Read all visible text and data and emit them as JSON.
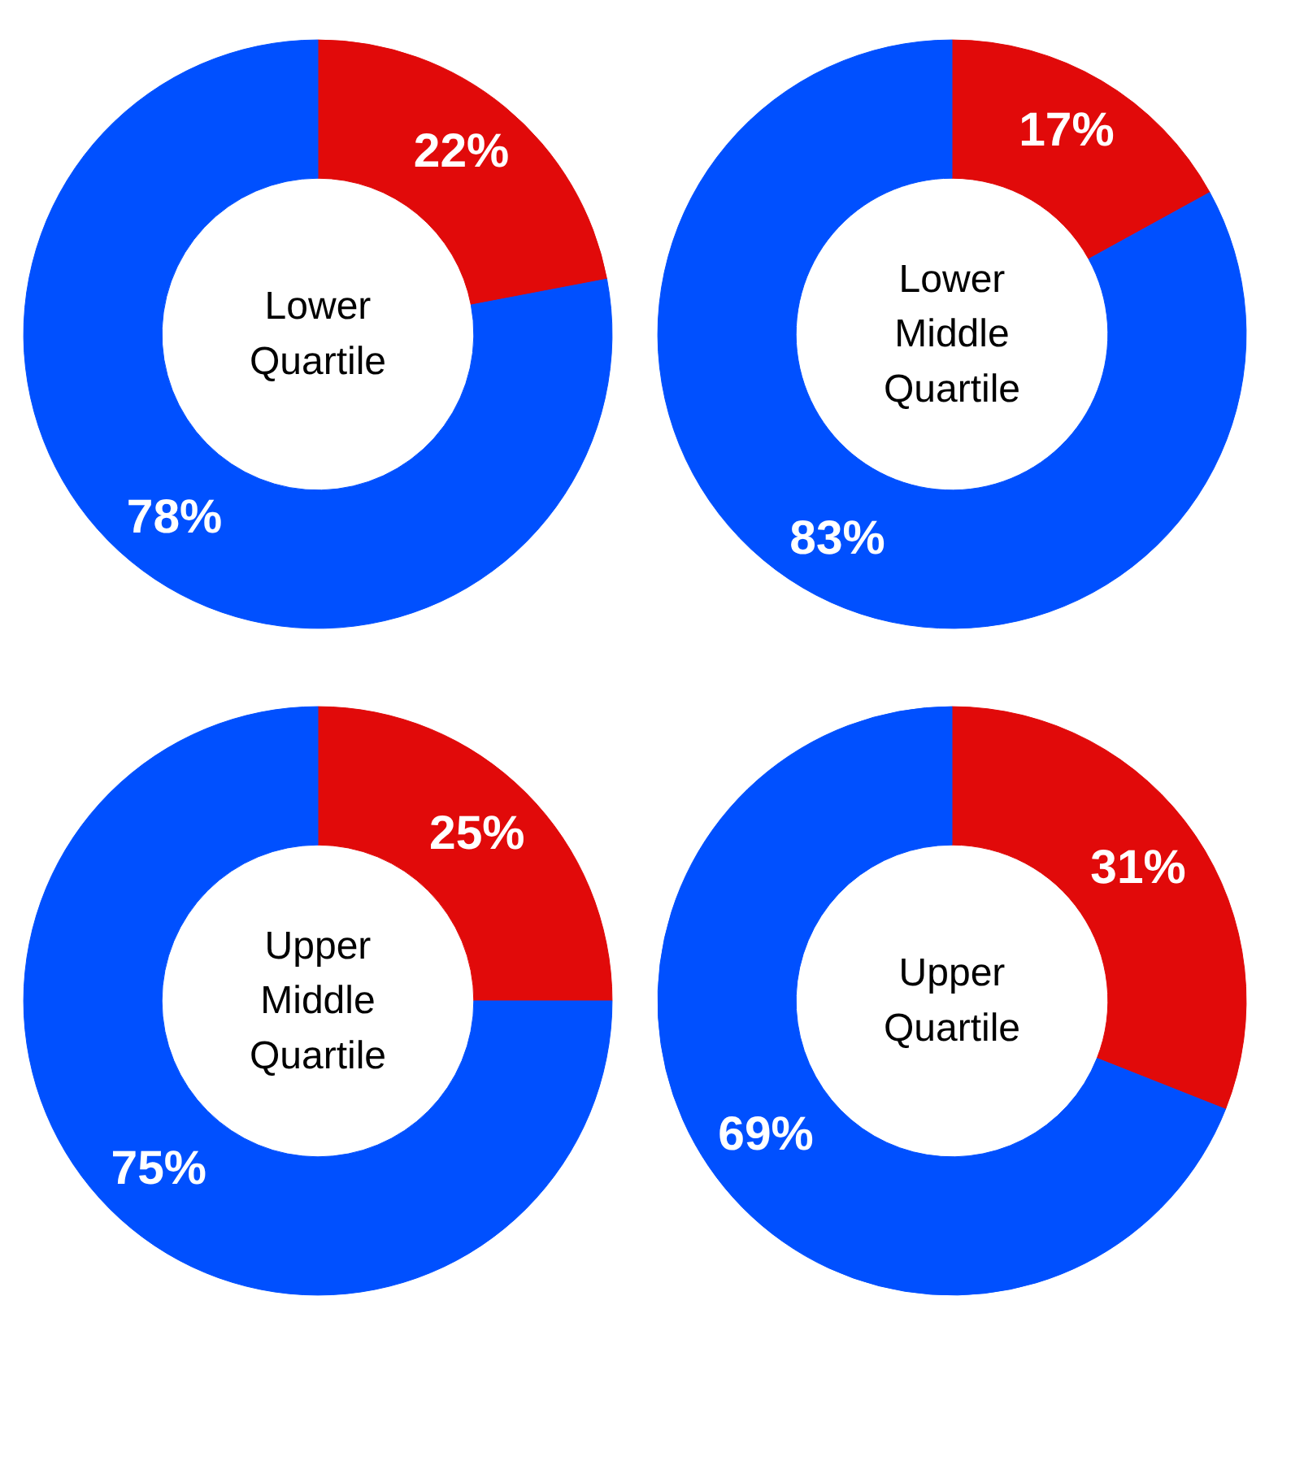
{
  "chart_data": [
    {
      "type": "donut",
      "title": "Lower Quartile",
      "categories": [
        null,
        null
      ],
      "values": [
        22,
        78
      ],
      "colors": [
        "#e10a0a",
        "#0050ff"
      ],
      "value_labels": [
        "22%",
        "78%"
      ]
    },
    {
      "type": "donut",
      "title": "Lower Middle Quartile",
      "categories": [
        null,
        null
      ],
      "values": [
        17,
        83
      ],
      "colors": [
        "#e10a0a",
        "#0050ff"
      ],
      "value_labels": [
        "17%",
        "83%"
      ]
    },
    {
      "type": "donut",
      "title": "Upper Middle Quartile",
      "categories": [
        null,
        null
      ],
      "values": [
        25,
        75
      ],
      "colors": [
        "#e10a0a",
        "#0050ff"
      ],
      "value_labels": [
        "25%",
        "75%"
      ]
    },
    {
      "type": "donut",
      "title": "Upper Quartile",
      "categories": [
        null,
        null
      ],
      "values": [
        31,
        69
      ],
      "colors": [
        "#e10a0a",
        "#0050ff"
      ],
      "value_labels": [
        "31%",
        "69%"
      ]
    }
  ]
}
